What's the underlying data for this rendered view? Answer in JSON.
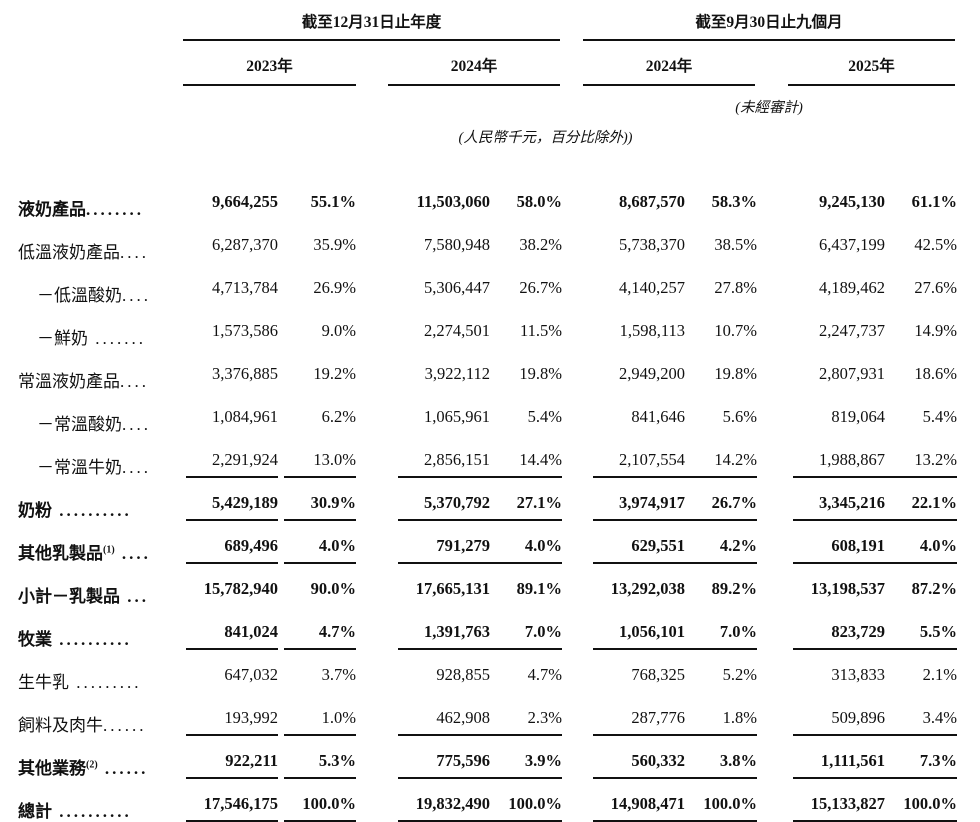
{
  "table": {
    "col_groups": [
      {
        "title": "截至12月31日止年度",
        "years": [
          "2023年",
          "2024年"
        ]
      },
      {
        "title": "截至9月30日止九個月",
        "years": [
          "2024年",
          "2025年"
        ]
      }
    ],
    "unaudited_note": "(未經審計)",
    "currency_note": "(人民幣千元，百分比除外))",
    "rows": [
      {
        "label": "液奶產品",
        "sup": "",
        "leader": "........",
        "bold": true,
        "indent": false,
        "rule_below": false,
        "values": [
          "9,664,255",
          "55.1%",
          "11,503,060",
          "58.0%",
          "8,687,570",
          "58.3%",
          "9,245,130",
          "61.1%"
        ]
      },
      {
        "label": "低溫液奶產品",
        "sup": "",
        "leader": "....",
        "bold": false,
        "indent": false,
        "rule_below": false,
        "values": [
          "6,287,370",
          "35.9%",
          "7,580,948",
          "38.2%",
          "5,738,370",
          "38.5%",
          "6,437,199",
          "42.5%"
        ]
      },
      {
        "label": "－低溫酸奶",
        "sup": "",
        "leader": "....",
        "bold": false,
        "indent": true,
        "rule_below": false,
        "values": [
          "4,713,784",
          "26.9%",
          "5,306,447",
          "26.7%",
          "4,140,257",
          "27.8%",
          "4,189,462",
          "27.6%"
        ]
      },
      {
        "label": "－鮮奶",
        "sup": "",
        "leader": " .......",
        "bold": false,
        "indent": true,
        "rule_below": false,
        "values": [
          "1,573,586",
          "9.0%",
          "2,274,501",
          "11.5%",
          "1,598,113",
          "10.7%",
          "2,247,737",
          "14.9%"
        ]
      },
      {
        "label": "常溫液奶產品",
        "sup": "",
        "leader": "....",
        "bold": false,
        "indent": false,
        "rule_below": false,
        "values": [
          "3,376,885",
          "19.2%",
          "3,922,112",
          "19.8%",
          "2,949,200",
          "19.8%",
          "2,807,931",
          "18.6%"
        ]
      },
      {
        "label": "－常溫酸奶",
        "sup": "",
        "leader": "....",
        "bold": false,
        "indent": true,
        "rule_below": false,
        "values": [
          "1,084,961",
          "6.2%",
          "1,065,961",
          "5.4%",
          "841,646",
          "5.6%",
          "819,064",
          "5.4%"
        ]
      },
      {
        "label": "－常溫牛奶",
        "sup": "",
        "leader": "....",
        "bold": false,
        "indent": true,
        "rule_below": true,
        "values": [
          "2,291,924",
          "13.0%",
          "2,856,151",
          "14.4%",
          "2,107,554",
          "14.2%",
          "1,988,867",
          "13.2%"
        ]
      },
      {
        "label": "奶粉",
        "sup": "",
        "leader": " ..........",
        "bold": true,
        "indent": false,
        "rule_below": true,
        "values": [
          "5,429,189",
          "30.9%",
          "5,370,792",
          "27.1%",
          "3,974,917",
          "26.7%",
          "3,345,216",
          "22.1%"
        ]
      },
      {
        "label": "其他乳製品",
        "sup": "(1)",
        "leader": " ....",
        "bold": true,
        "indent": false,
        "rule_below": true,
        "values": [
          "689,496",
          "4.0%",
          "791,279",
          "4.0%",
          "629,551",
          "4.2%",
          "608,191",
          "4.0%"
        ]
      },
      {
        "label": "小計－乳製品",
        "sup": "",
        "leader": " ...",
        "bold": true,
        "indent": false,
        "rule_below": false,
        "values": [
          "15,782,940",
          "90.0%",
          "17,665,131",
          "89.1%",
          "13,292,038",
          "89.2%",
          "13,198,537",
          "87.2%"
        ]
      },
      {
        "label": "牧業",
        "sup": "",
        "leader": " ..........",
        "bold": true,
        "indent": false,
        "rule_below": true,
        "values": [
          "841,024",
          "4.7%",
          "1,391,763",
          "7.0%",
          "1,056,101",
          "7.0%",
          "823,729",
          "5.5%"
        ]
      },
      {
        "label": "生牛乳",
        "sup": "",
        "leader": " .........",
        "bold": false,
        "indent": false,
        "rule_below": false,
        "values": [
          "647,032",
          "3.7%",
          "928,855",
          "4.7%",
          "768,325",
          "5.2%",
          "313,833",
          "2.1%"
        ]
      },
      {
        "label": "飼料及肉牛",
        "sup": "",
        "leader": "......",
        "bold": false,
        "indent": false,
        "rule_below": true,
        "values": [
          "193,992",
          "1.0%",
          "462,908",
          "2.3%",
          "287,776",
          "1.8%",
          "509,896",
          "3.4%"
        ]
      },
      {
        "label": "其他業務",
        "sup": "(2)",
        "leader": " ......",
        "bold": true,
        "indent": false,
        "rule_below": true,
        "values": [
          "922,211",
          "5.3%",
          "775,596",
          "3.9%",
          "560,332",
          "3.8%",
          "1,111,561",
          "7.3%"
        ]
      },
      {
        "label": "總計",
        "sup": "",
        "leader": " ..........",
        "bold": true,
        "indent": false,
        "rule_below": true,
        "values": [
          "17,546,175",
          "100.0%",
          "19,832,490",
          "100.0%",
          "14,908,471",
          "100.0%",
          "15,133,827",
          "100.0%"
        ]
      }
    ]
  }
}
